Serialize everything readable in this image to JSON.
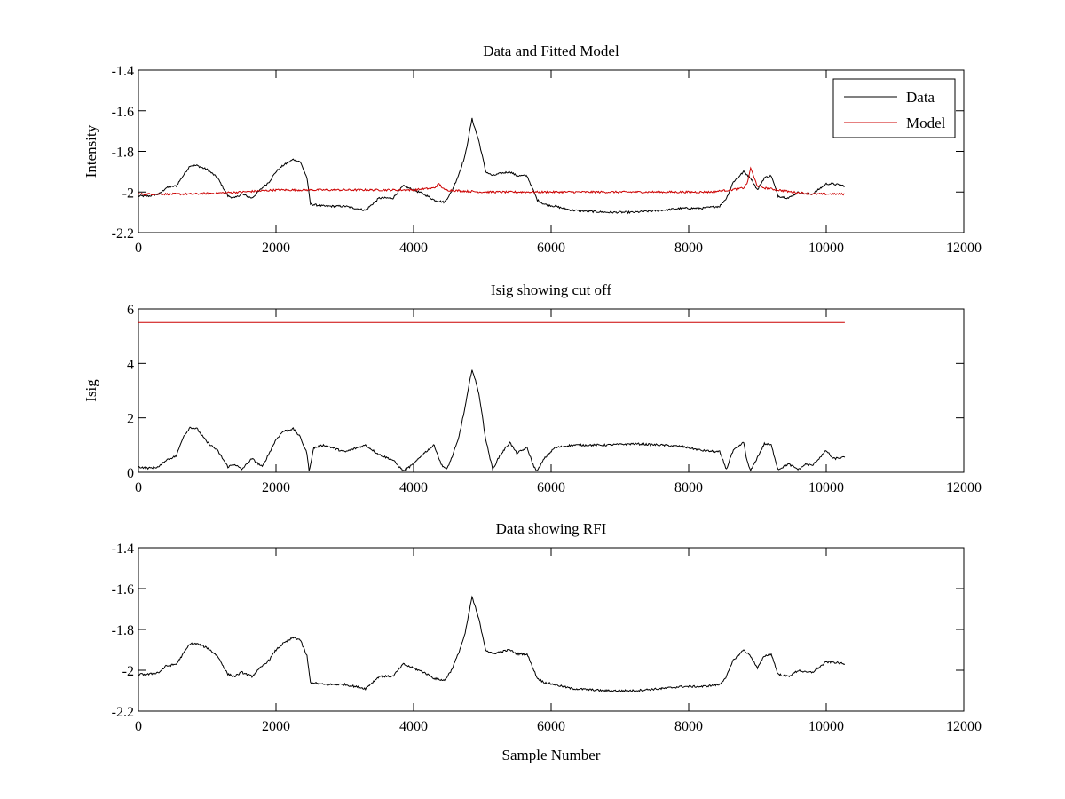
{
  "chart_data": [
    {
      "type": "line",
      "title": "Data and Fitted Model",
      "xlabel": "",
      "ylabel": "Intensity",
      "xlim": [
        0,
        12000
      ],
      "ylim": [
        -2.2,
        -1.4
      ],
      "xticks": [
        0,
        2000,
        4000,
        6000,
        8000,
        10000,
        12000
      ],
      "xtick_labels": [
        "0",
        "2000",
        "4000",
        "6000",
        "8000",
        "10000",
        "12000"
      ],
      "yticks": [
        -1.4,
        -1.6,
        -1.8,
        -2,
        -2.2
      ],
      "ytick_labels": [
        "-1.4",
        "-1.6",
        "-1.8",
        "-2",
        "-2.2"
      ],
      "legend": {
        "placement": "top-right",
        "entries": [
          {
            "label": "Data",
            "color": "#000000"
          },
          {
            "label": "Model",
            "color": "#cc0000"
          }
        ]
      },
      "series": [
        {
          "name": "Data",
          "color": "#000000",
          "x": [
            0,
            150,
            300,
            400,
            550,
            650,
            750,
            850,
            1000,
            1150,
            1300,
            1400,
            1500,
            1650,
            1800,
            1900,
            2000,
            2100,
            2250,
            2350,
            2450,
            2500,
            2700,
            3000,
            3300,
            3500,
            3700,
            3850,
            4000,
            4150,
            4300,
            4450,
            4550,
            4650,
            4750,
            4850,
            4950,
            5050,
            5150,
            5250,
            5400,
            5500,
            5650,
            5750,
            5800,
            5900,
            6050,
            6300,
            6800,
            7200,
            7600,
            7900,
            8200,
            8450,
            8550,
            8650,
            8800,
            8900,
            9000,
            9100,
            9200,
            9300,
            9450,
            9600,
            9700,
            9800,
            10000,
            10100,
            10270
          ],
          "y": [
            -2.02,
            -2.02,
            -2.01,
            -1.98,
            -1.97,
            -1.92,
            -1.87,
            -1.87,
            -1.89,
            -1.93,
            -2.02,
            -2.03,
            -2.01,
            -2.03,
            -1.98,
            -1.95,
            -1.9,
            -1.87,
            -1.84,
            -1.85,
            -1.93,
            -2.06,
            -2.07,
            -2.07,
            -2.09,
            -2.03,
            -2.03,
            -1.97,
            -1.99,
            -2.01,
            -2.04,
            -2.05,
            -2.0,
            -1.92,
            -1.82,
            -1.64,
            -1.75,
            -1.9,
            -1.92,
            -1.91,
            -1.9,
            -1.92,
            -1.92,
            -2.0,
            -2.04,
            -2.06,
            -2.07,
            -2.09,
            -2.1,
            -2.1,
            -2.09,
            -2.08,
            -2.08,
            -2.07,
            -2.03,
            -1.95,
            -1.9,
            -1.93,
            -1.99,
            -1.93,
            -1.92,
            -2.02,
            -2.03,
            -2.0,
            -2.01,
            -2.01,
            -1.96,
            -1.96,
            -1.97
          ]
        },
        {
          "name": "Model",
          "color": "#cc0000",
          "x": [
            0,
            800,
            1500,
            2000,
            2500,
            3000,
            3500,
            4000,
            4300,
            4370,
            4450,
            5000,
            5500,
            6000,
            6500,
            7000,
            7500,
            8000,
            8300,
            8600,
            8800,
            8860,
            8900,
            8950,
            9000,
            9100,
            9300,
            9500,
            9800,
            10000,
            10270
          ],
          "y": [
            -2.01,
            -2.01,
            -2.0,
            -1.99,
            -1.99,
            -1.99,
            -1.99,
            -1.99,
            -1.98,
            -1.96,
            -1.99,
            -2.0,
            -2.0,
            -2.0,
            -2.0,
            -2.0,
            -2.0,
            -2.0,
            -2.0,
            -1.99,
            -1.98,
            -1.95,
            -1.88,
            -1.93,
            -1.97,
            -1.98,
            -1.99,
            -2.0,
            -2.01,
            -2.01,
            -2.01
          ]
        }
      ]
    },
    {
      "type": "line",
      "title": "Isig showing cut off",
      "xlabel": "",
      "ylabel": "Isig",
      "xlim": [
        0,
        12000
      ],
      "ylim": [
        0,
        6
      ],
      "xticks": [
        0,
        2000,
        4000,
        6000,
        8000,
        10000,
        12000
      ],
      "xtick_labels": [
        "0",
        "2000",
        "4000",
        "6000",
        "8000",
        "10000",
        "12000"
      ],
      "yticks": [
        0,
        2,
        4,
        6
      ],
      "ytick_labels": [
        "0",
        "2",
        "4",
        "6"
      ],
      "series": [
        {
          "color": "#000000",
          "x": [
            0,
            150,
            300,
            400,
            550,
            650,
            750,
            850,
            1000,
            1150,
            1300,
            1400,
            1500,
            1650,
            1800,
            1900,
            2000,
            2100,
            2250,
            2350,
            2450,
            2480,
            2550,
            2700,
            3000,
            3300,
            3500,
            3700,
            3850,
            4000,
            4150,
            4300,
            4400,
            4480,
            4550,
            4650,
            4750,
            4850,
            4950,
            5050,
            5150,
            5250,
            5400,
            5500,
            5650,
            5750,
            5800,
            5900,
            6050,
            6300,
            6800,
            7200,
            7600,
            7900,
            8200,
            8450,
            8550,
            8600,
            8650,
            8800,
            8850,
            8900,
            8950,
            9100,
            9200,
            9300,
            9450,
            9600,
            9700,
            9800,
            10000,
            10100,
            10270
          ],
          "y": [
            0.2,
            0.15,
            0.2,
            0.45,
            0.6,
            1.3,
            1.65,
            1.6,
            1.1,
            0.8,
            0.2,
            0.3,
            0.1,
            0.5,
            0.2,
            0.7,
            1.2,
            1.5,
            1.6,
            1.3,
            0.7,
            0.05,
            0.9,
            1.0,
            0.75,
            1.0,
            0.65,
            0.45,
            0.05,
            0.3,
            0.7,
            1.0,
            0.3,
            0.1,
            0.5,
            1.2,
            2.4,
            3.8,
            2.9,
            1.2,
            0.1,
            0.6,
            1.1,
            0.7,
            0.9,
            0.2,
            0.05,
            0.5,
            0.9,
            1.0,
            1.0,
            1.05,
            1.0,
            0.95,
            0.8,
            0.75,
            0.1,
            0.5,
            0.8,
            1.1,
            0.4,
            0.05,
            0.3,
            1.05,
            1.0,
            0.1,
            0.3,
            0.1,
            0.3,
            0.25,
            0.8,
            0.5,
            0.55
          ]
        },
        {
          "color": "#cc0000",
          "x": [
            0,
            10270
          ],
          "y": [
            5.5,
            5.5
          ]
        }
      ]
    },
    {
      "type": "line",
      "title": "Data showing RFI",
      "xlabel": "Sample Number",
      "ylabel": "",
      "xlim": [
        0,
        12000
      ],
      "ylim": [
        -2.2,
        -1.4
      ],
      "xticks": [
        0,
        2000,
        4000,
        6000,
        8000,
        10000,
        12000
      ],
      "xtick_labels": [
        "0",
        "2000",
        "4000",
        "6000",
        "8000",
        "10000",
        "12000"
      ],
      "yticks": [
        -1.4,
        -1.6,
        -1.8,
        -2,
        -2.2
      ],
      "ytick_labels": [
        "-1.4",
        "-1.6",
        "-1.8",
        "-2",
        "-2.2"
      ],
      "series": [
        {
          "color": "#000000",
          "x": [
            0,
            150,
            300,
            400,
            550,
            650,
            750,
            850,
            1000,
            1150,
            1300,
            1400,
            1500,
            1650,
            1800,
            1900,
            2000,
            2100,
            2250,
            2350,
            2450,
            2500,
            2700,
            3000,
            3300,
            3500,
            3700,
            3850,
            4000,
            4150,
            4300,
            4450,
            4550,
            4650,
            4750,
            4850,
            4950,
            5050,
            5150,
            5250,
            5400,
            5500,
            5650,
            5750,
            5800,
            5900,
            6050,
            6300,
            6800,
            7200,
            7600,
            7900,
            8200,
            8450,
            8550,
            8650,
            8800,
            8900,
            9000,
            9100,
            9200,
            9300,
            9450,
            9600,
            9700,
            9800,
            10000,
            10100,
            10270
          ],
          "y": [
            -2.02,
            -2.02,
            -2.01,
            -1.98,
            -1.97,
            -1.92,
            -1.87,
            -1.87,
            -1.89,
            -1.93,
            -2.02,
            -2.03,
            -2.01,
            -2.03,
            -1.98,
            -1.95,
            -1.9,
            -1.87,
            -1.84,
            -1.85,
            -1.93,
            -2.06,
            -2.07,
            -2.07,
            -2.09,
            -2.03,
            -2.03,
            -1.97,
            -1.99,
            -2.01,
            -2.04,
            -2.05,
            -2.0,
            -1.92,
            -1.82,
            -1.64,
            -1.75,
            -1.9,
            -1.92,
            -1.91,
            -1.9,
            -1.92,
            -1.92,
            -2.0,
            -2.04,
            -2.06,
            -2.07,
            -2.09,
            -2.1,
            -2.1,
            -2.09,
            -2.08,
            -2.08,
            -2.07,
            -2.03,
            -1.95,
            -1.9,
            -1.93,
            -1.99,
            -1.93,
            -1.92,
            -2.02,
            -2.03,
            -2.0,
            -2.01,
            -2.01,
            -1.96,
            -1.96,
            -1.97
          ]
        }
      ]
    }
  ]
}
